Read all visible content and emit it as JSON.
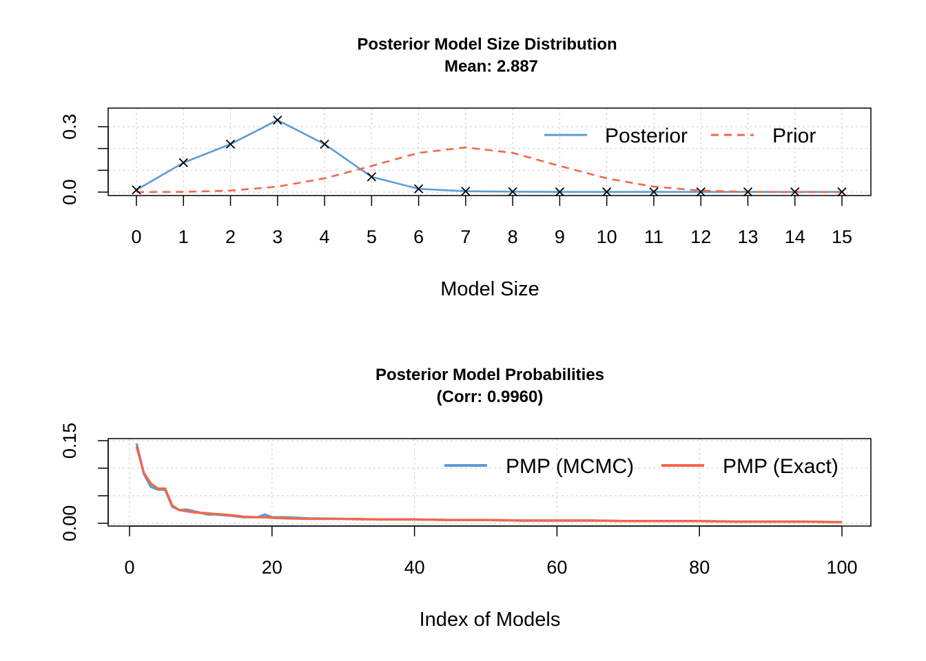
{
  "chart_data": [
    {
      "type": "line",
      "title": "Posterior Model Size Distribution",
      "subtitle": "Mean: 2.887",
      "xlabel": "Model Size",
      "ylabel": "",
      "x": [
        0,
        1,
        2,
        3,
        4,
        5,
        6,
        7,
        8,
        9,
        10,
        11,
        12,
        13,
        14,
        15
      ],
      "xticks": [
        "0",
        "1",
        "2",
        "3",
        "4",
        "5",
        "6",
        "7",
        "8",
        "9",
        "10",
        "11",
        "12",
        "13",
        "14",
        "15"
      ],
      "yticks": [
        "0.0",
        "0.3"
      ],
      "ylim": [
        0,
        0.35
      ],
      "grid": true,
      "legend": "top-right",
      "series": [
        {
          "name": "Posterior",
          "color": "#5b9bd5",
          "style": "solid",
          "marker": "x",
          "values": [
            0.01,
            0.135,
            0.22,
            0.33,
            0.22,
            0.07,
            0.015,
            0.004,
            0.002,
            0.001,
            0.001,
            0.001,
            0.001,
            0.001,
            0.001,
            0.001
          ]
        },
        {
          "name": "Prior",
          "color": "#f4664a",
          "style": "dashed",
          "values": [
            0.0,
            0.001,
            0.007,
            0.025,
            0.063,
            0.12,
            0.18,
            0.205,
            0.18,
            0.12,
            0.063,
            0.025,
            0.007,
            0.001,
            0.0,
            0.0
          ]
        }
      ]
    },
    {
      "type": "line",
      "title": "Posterior Model Probabilities",
      "subtitle": "(Corr: 0.9960)",
      "xlabel": "Index of Models",
      "ylabel": "",
      "xlim": [
        1,
        100
      ],
      "xticks": [
        "0",
        "20",
        "40",
        "60",
        "80",
        "100"
      ],
      "yticks": [
        "0.00",
        "0.15"
      ],
      "ylim": [
        0,
        0.15
      ],
      "grid": true,
      "legend": "top-right",
      "series": [
        {
          "name": "PMP (MCMC)",
          "color": "#5b9bd5",
          "x": [
            1,
            2,
            3,
            4,
            5,
            6,
            7,
            8,
            9,
            10,
            11,
            12,
            14,
            16,
            18,
            19,
            20,
            22,
            25,
            30,
            35,
            40,
            45,
            50,
            55,
            60,
            65,
            70,
            75,
            80,
            85,
            90,
            95,
            100
          ],
          "values": [
            0.145,
            0.09,
            0.066,
            0.061,
            0.061,
            0.03,
            0.024,
            0.025,
            0.022,
            0.019,
            0.016,
            0.016,
            0.014,
            0.011,
            0.011,
            0.016,
            0.011,
            0.011,
            0.009,
            0.008,
            0.007,
            0.007,
            0.006,
            0.006,
            0.005,
            0.005,
            0.005,
            0.004,
            0.004,
            0.004,
            0.003,
            0.003,
            0.003,
            0.002
          ]
        },
        {
          "name": "PMP (Exact)",
          "color": "#f4664a",
          "x": [
            1,
            2,
            3,
            4,
            5,
            6,
            7,
            8,
            9,
            10,
            11,
            12,
            14,
            16,
            18,
            19,
            20,
            22,
            25,
            30,
            35,
            40,
            45,
            50,
            55,
            60,
            65,
            70,
            75,
            80,
            85,
            90,
            95,
            100
          ],
          "values": [
            0.139,
            0.092,
            0.072,
            0.063,
            0.063,
            0.032,
            0.024,
            0.022,
            0.02,
            0.019,
            0.018,
            0.017,
            0.015,
            0.012,
            0.011,
            0.011,
            0.01,
            0.009,
            0.008,
            0.008,
            0.007,
            0.007,
            0.006,
            0.006,
            0.005,
            0.005,
            0.005,
            0.004,
            0.004,
            0.004,
            0.003,
            0.003,
            0.003,
            0.002
          ]
        }
      ]
    }
  ]
}
